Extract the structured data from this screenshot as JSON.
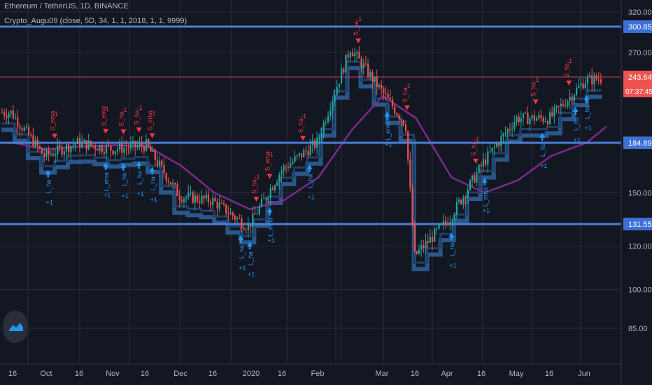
{
  "header": {
    "symbol_line": "Ethereum / TetherUS, 1D, BINANCE",
    "indicator_line": "Crypto_Augu09 (close, 5D, 34, 1, 1, 2018, 1, 1, 9999)"
  },
  "logo": {
    "icon": "tradingview-logo-icon"
  },
  "colors": {
    "background": "#131722",
    "grid": "#2a2e39",
    "candle_up": "#26a69a",
    "candle_down": "#ef5350",
    "level_line": "#4a7fd8",
    "stop_line": "#2e5e96",
    "ema_line": "#7b2a8c",
    "signal_long": "#2196f3",
    "signal_short": "#f23645"
  },
  "chart_data": {
    "type": "line",
    "scale": "log",
    "ylim": [
      78,
      330
    ],
    "y_ticks": [
      "320.00",
      "270.00",
      "150.00",
      "120.00",
      "100.00",
      "85.00"
    ],
    "x_ticks": [
      "16",
      "Oct",
      "16",
      "Nov",
      "16",
      "Dec",
      "16",
      "2020",
      "16",
      "Feb",
      "Mar",
      "16",
      "Apr",
      "16",
      "May",
      "16",
      "Jun"
    ],
    "horizontal_levels": [
      {
        "label": "300.85",
        "value": 300.85
      },
      {
        "label": "184.89",
        "value": 184.89
      },
      {
        "label": "131.55",
        "value": 131.55
      }
    ],
    "current_price": {
      "label": "243.64",
      "value": 243.64,
      "countdown": "07:37:45"
    },
    "series": [
      {
        "x": [
          "Sep 16",
          "Oct 1",
          "Oct 16",
          "Nov 1",
          "Nov 16",
          "Dec 1",
          "Dec 16",
          "Jan 1",
          "Jan 16",
          "Feb 1",
          "Feb 16",
          "Mar 1",
          "Mar 12",
          "Mar 16",
          "Apr 1",
          "Apr 16",
          "May 1",
          "May 16",
          "Jun 1",
          "Jun 10"
        ],
        "values": [
          210,
          175,
          185,
          180,
          183,
          148,
          145,
          130,
          165,
          185,
          275,
          230,
          200,
          115,
          135,
          170,
          205,
          205,
          240,
          243
        ]
      },
      {
        "x": [
          "Sep 16",
          "Oct 1",
          "Oct 16",
          "Nov 1",
          "Nov 16",
          "Dec 1",
          "Dec 16",
          "Jan 1",
          "Jan 16",
          "Feb 1",
          "Feb 16",
          "Mar 1",
          "Mar 16",
          "Apr 1",
          "Apr 16",
          "May 1",
          "May 16",
          "Jun 1",
          "Jun 10"
        ],
        "values": [
          185,
          180,
          182,
          183,
          182,
          168,
          150,
          140,
          145,
          160,
          195,
          225,
          205,
          160,
          150,
          158,
          175,
          185,
          198
        ]
      }
    ],
    "signals": [
      {
        "text": "S_ema",
        "date": "Oct 5",
        "kind": "short"
      },
      {
        "text": "S_ema",
        "date": "Oct 28",
        "kind": "short"
      },
      {
        "text": "S_ha",
        "date": "Nov 5",
        "kind": "short"
      },
      {
        "text": "S_ha",
        "date": "Nov 12",
        "kind": "short"
      },
      {
        "text": "S_ema",
        "date": "Nov 18",
        "kind": "short"
      },
      {
        "text": "S_ha",
        "date": "Jan 4",
        "kind": "short"
      },
      {
        "text": "S_ema",
        "date": "Jan 10",
        "kind": "short"
      },
      {
        "text": "S_ha",
        "date": "Jan 25",
        "kind": "short"
      },
      {
        "text": "S_ha",
        "date": "Feb 19",
        "kind": "short"
      },
      {
        "text": "S_ha",
        "date": "Mar 12",
        "kind": "short"
      },
      {
        "text": "S_ha",
        "date": "Apr 12",
        "kind": "short"
      },
      {
        "text": "S_ha",
        "date": "May 9",
        "kind": "short"
      },
      {
        "text": "S_ha",
        "date": "May 24",
        "kind": "short"
      },
      {
        "text": "L_ha",
        "date": "Oct 2",
        "kind": "long"
      },
      {
        "text": "L_ema",
        "date": "Oct 28",
        "kind": "long"
      },
      {
        "text": "L_ha",
        "date": "Nov 5",
        "kind": "long"
      },
      {
        "text": "L_ha",
        "date": "Nov 12",
        "kind": "long"
      },
      {
        "text": "L_ha",
        "date": "Nov 18",
        "kind": "long"
      },
      {
        "text": "L_ha",
        "date": "Dec 28",
        "kind": "long"
      },
      {
        "text": "L_ha",
        "date": "Jan 1",
        "kind": "long"
      },
      {
        "text": "L_ema",
        "date": "Jan 10",
        "kind": "long"
      },
      {
        "text": "L_ha",
        "date": "Jan 28",
        "kind": "long"
      },
      {
        "text": "L_ema",
        "date": "Mar 3",
        "kind": "long"
      },
      {
        "text": "L_ha",
        "date": "Apr 1",
        "kind": "long"
      },
      {
        "text": "L_ema",
        "date": "Apr 16",
        "kind": "long"
      },
      {
        "text": "L_ha",
        "date": "May 12",
        "kind": "long"
      },
      {
        "text": "L_ha",
        "date": "May 27",
        "kind": "long"
      },
      {
        "text": "L_ha",
        "date": "Jun 1",
        "kind": "long"
      }
    ]
  }
}
